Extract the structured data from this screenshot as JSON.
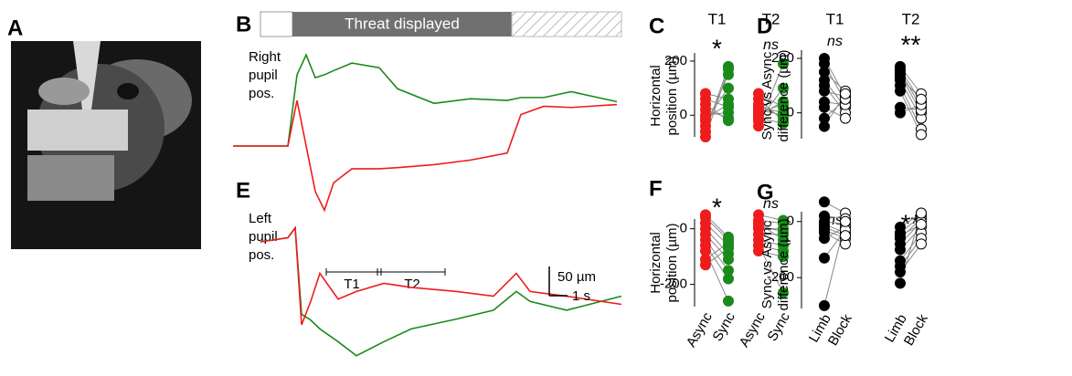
{
  "panel_labels": {
    "A": "A",
    "B": "B",
    "C": "C",
    "D": "D",
    "E": "E",
    "F": "F",
    "G": "G"
  },
  "threat_bar": "Threat displayed",
  "traces": {
    "B": {
      "ylabel": [
        "Right",
        "pupil",
        "pos."
      ],
      "x": [
        0,
        3,
        3.5,
        4,
        4.5,
        5,
        5.5,
        6.5,
        8,
        9,
        11,
        13,
        15,
        15.75,
        17,
        18.5,
        21
      ],
      "series": [
        {
          "color": "#1a8a1a",
          "values": [
            0,
            0,
            122,
            156,
            117,
            122,
            129,
            142,
            134,
            98,
            73,
            81,
            78,
            83,
            83,
            93,
            76
          ]
        },
        {
          "color": "#ee1c1c",
          "values": [
            0,
            0,
            78,
            0,
            -78,
            -110,
            -63,
            -39,
            -39,
            -37,
            -32,
            -24,
            -12,
            54,
            68,
            66,
            71
          ]
        }
      ]
    },
    "E": {
      "ylabel": [
        "Left",
        "pupil",
        "pos."
      ],
      "x": [
        0,
        1.5,
        1.9,
        2.25,
        2.75,
        3.25,
        4.25,
        5.25,
        6.75,
        8.25,
        10.75,
        12.75,
        14,
        14.75,
        16.75,
        19.75
      ],
      "series": [
        {
          "color": "#1a8a1a",
          "values": [
            0,
            7,
            24,
            -124,
            -134,
            -149,
            -171,
            -195,
            -171,
            -149,
            -132,
            -117,
            -85,
            -102,
            -117,
            -93
          ]
        },
        {
          "color": "#ee1c1c",
          "values": [
            0,
            7,
            24,
            -142,
            -102,
            -54,
            -98,
            -85,
            -71,
            -78,
            -85,
            -93,
            -54,
            -85,
            -93,
            -107
          ]
        }
      ],
      "windows": [
        "T1",
        "T2"
      ]
    }
  },
  "scalebar": {
    "y": {
      "value": 50,
      "label": "50 µm"
    },
    "x": {
      "value": 1,
      "label": "1 s"
    }
  },
  "paired": {
    "C": {
      "ylabel": [
        "Horizontal",
        "position (µm)"
      ],
      "ylim": [
        -80,
        230
      ],
      "yticks": [
        0,
        200
      ],
      "colors": [
        "#ee1c1c",
        "#1a8a1a"
      ],
      "open": [
        false,
        false
      ],
      "groups": [
        {
          "name": "T1",
          "mark": "*",
          "a": [
            -80,
            -60,
            -40,
            -20,
            -10,
            0,
            20,
            40,
            60,
            80
          ],
          "b": [
            170,
            180,
            150,
            100,
            40,
            10,
            -10,
            -20,
            30,
            60
          ]
        },
        {
          "name": "T2",
          "mark": "ns",
          "a": [
            -40,
            -20,
            0,
            10,
            20,
            40,
            60,
            80,
            30,
            -10
          ],
          "b": [
            190,
            100,
            50,
            40,
            0,
            -10,
            -20,
            30,
            10,
            -30
          ]
        }
      ]
    },
    "D": {
      "ylabel": [
        "Sync vs Async",
        "difference (µm)"
      ],
      "ylim": [
        -95,
        230
      ],
      "yticks": [
        0,
        200
      ],
      "colors": [
        "#000000",
        "#000000"
      ],
      "open": [
        false,
        true
      ],
      "groups": [
        {
          "name": "T1",
          "mark": "ns",
          "a": [
            200,
            180,
            150,
            120,
            100,
            80,
            40,
            20,
            -20,
            -50
          ],
          "b": [
            60,
            40,
            80,
            20,
            0,
            60,
            30,
            -20,
            50,
            70
          ]
        },
        {
          "name": "T2",
          "mark": "**",
          "a": [
            170,
            160,
            150,
            140,
            120,
            100,
            80,
            20,
            0,
            130
          ],
          "b": [
            70,
            40,
            20,
            0,
            -20,
            -60,
            -80,
            10,
            30,
            50
          ]
        }
      ]
    },
    "F": {
      "ylabel": [
        "Horizontal",
        "position (µm)"
      ],
      "ylim": [
        -280,
        35
      ],
      "yticks": [
        0,
        -200
      ],
      "colors": [
        "#ee1c1c",
        "#1a8a1a"
      ],
      "open": [
        false,
        false
      ],
      "groups": [
        {
          "mark": "*",
          "xlabels": [
            "Async",
            "Sync"
          ],
          "a": [
            50,
            40,
            20,
            0,
            -20,
            -40,
            -60,
            -80,
            -110,
            -130
          ],
          "b": [
            -30,
            -40,
            -60,
            -90,
            -110,
            -150,
            -180,
            -260,
            -50,
            -70
          ]
        },
        {
          "mark": "ns",
          "xlabels": [
            "Async",
            "Sync"
          ],
          "a": [
            50,
            30,
            0,
            -20,
            -40,
            -60,
            -80,
            -60,
            20,
            10
          ],
          "b": [
            30,
            20,
            0,
            -20,
            -60,
            -80,
            -100,
            -230,
            -40,
            -10
          ]
        }
      ]
    },
    "G": {
      "ylabel": [
        "Sync vs Async",
        "difference (µm)"
      ],
      "ylim": [
        -310,
        35
      ],
      "yticks": [
        0,
        -200
      ],
      "colors": [
        "#000000",
        "#000000"
      ],
      "open": [
        false,
        true
      ],
      "groups": [
        {
          "mark": "ns",
          "xlabels": [
            "Limb",
            "Block"
          ],
          "a": [
            70,
            20,
            0,
            -10,
            -30,
            -40,
            -60,
            -130,
            -300,
            -20
          ],
          "b": [
            30,
            10,
            -10,
            -40,
            -60,
            -80,
            -20,
            -30,
            0,
            -50
          ]
        },
        {
          "mark": "**",
          "xlabels": [
            "Limb",
            "Block"
          ],
          "a": [
            -20,
            -40,
            -60,
            -80,
            -100,
            -140,
            -160,
            -180,
            -220,
            -50
          ],
          "b": [
            30,
            20,
            10,
            0,
            -20,
            -40,
            -60,
            -80,
            30,
            -10
          ]
        }
      ]
    }
  }
}
